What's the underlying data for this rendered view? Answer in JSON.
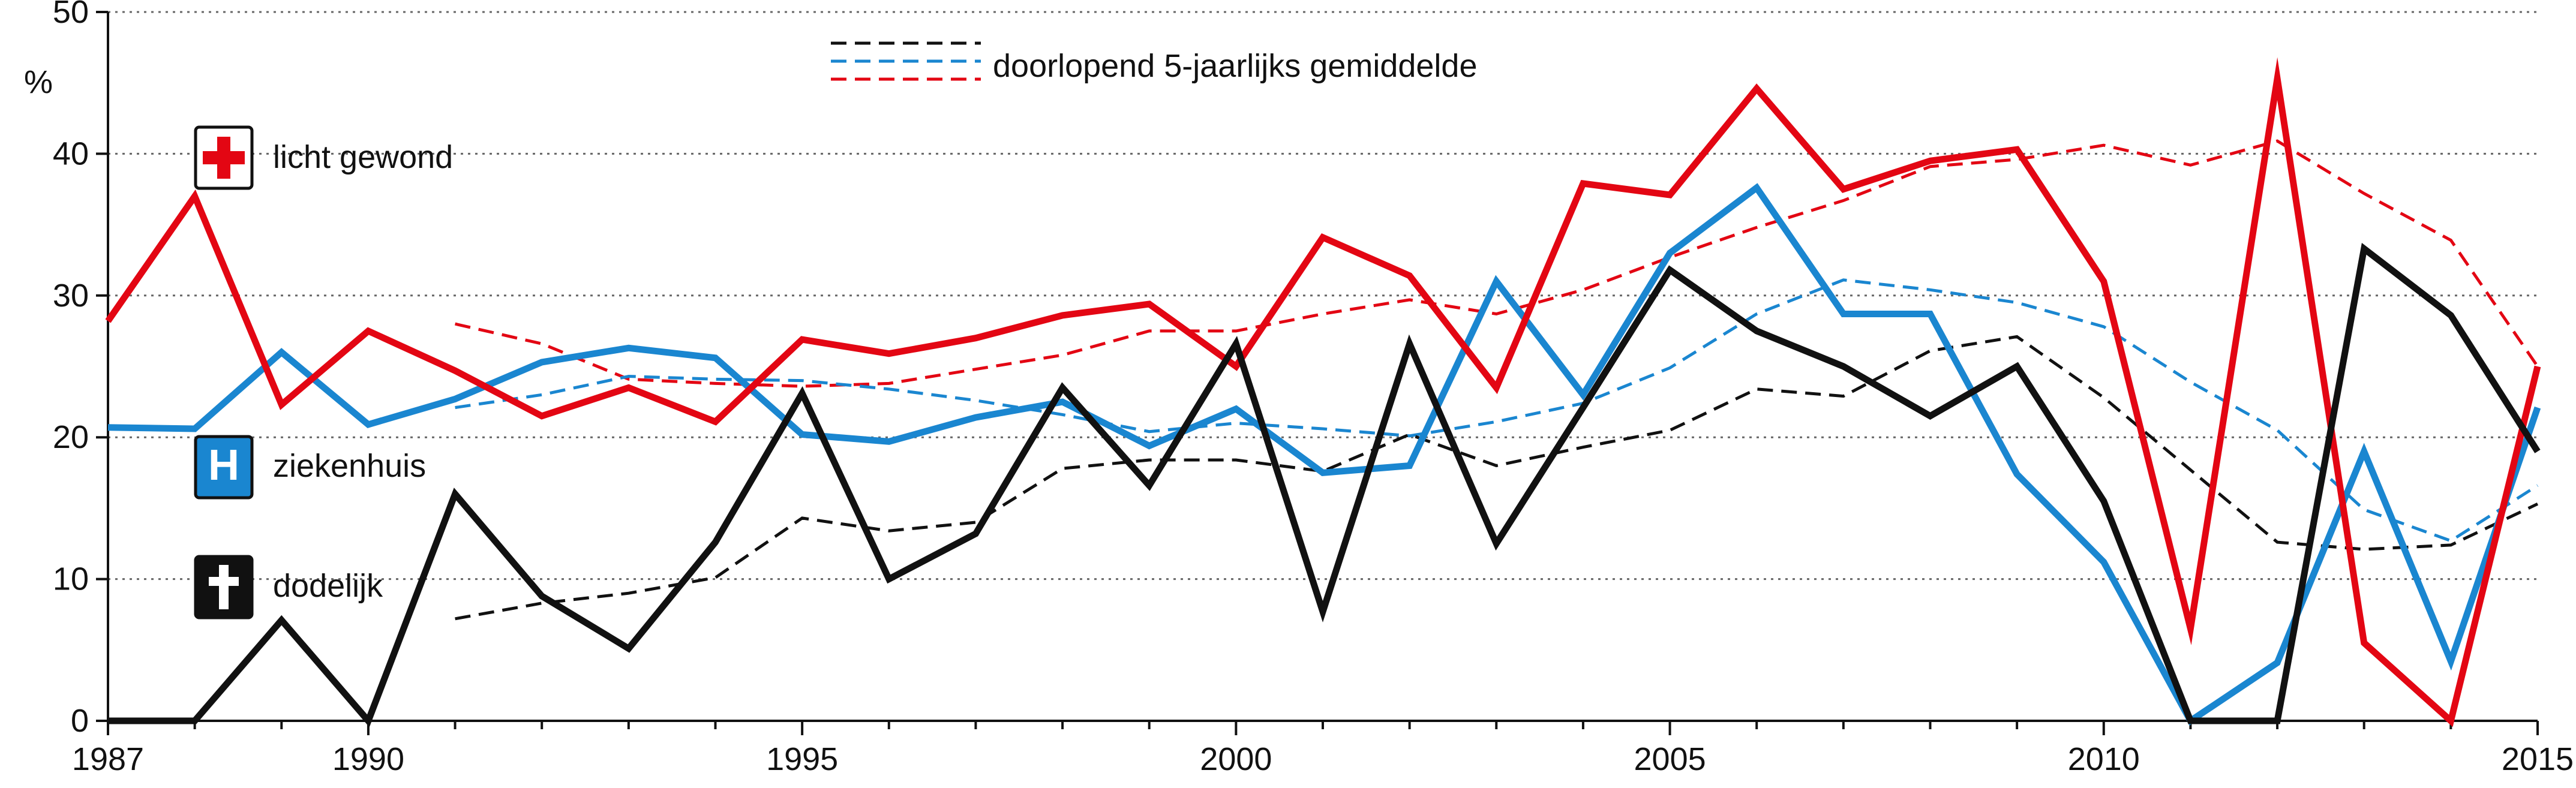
{
  "chart_data": {
    "type": "line",
    "title": "",
    "xlabel": "",
    "ylabel": "%",
    "xlim": [
      1987,
      2015
    ],
    "ylim": [
      0,
      50
    ],
    "y_ticks": [
      0,
      10,
      20,
      30,
      40,
      50
    ],
    "x_ticks": [
      1987,
      1990,
      1995,
      2000,
      2005,
      2010,
      2015
    ],
    "gridlines": "dotted horizontal",
    "legend": {
      "moving_average_label": "doorlopend 5-jaarlijks gemiddelde",
      "position": "top-center"
    },
    "series": [
      {
        "name": "licht gewond",
        "icon": "red-cross-icon",
        "color": "#e30613",
        "x": [
          1987,
          1988,
          1989,
          1990,
          1991,
          1992,
          1993,
          1994,
          1995,
          1996,
          1997,
          1998,
          1999,
          2000,
          2001,
          2002,
          2003,
          2004,
          2005,
          2006,
          2007,
          2008,
          2009,
          2010,
          2011,
          2012,
          2013,
          2014,
          2015
        ],
        "values": [
          28.2,
          37.0,
          22.3,
          27.5,
          24.7,
          21.5,
          23.5,
          21.1,
          26.9,
          25.9,
          27.0,
          28.6,
          29.4,
          25.0,
          34.1,
          31.4,
          23.5,
          37.9,
          37.1,
          44.6,
          37.5,
          39.5,
          40.3,
          31.0,
          6.5,
          45.3,
          5.5,
          0.0,
          25.0
        ],
        "moving_average": {
          "x": [
            1991,
            1992,
            1993,
            1994,
            1995,
            1996,
            1997,
            1998,
            1999,
            2000,
            2001,
            2002,
            2003,
            2004,
            2005,
            2006,
            2007,
            2008,
            2009,
            2010,
            2011,
            2012,
            2013,
            2014,
            2015
          ],
          "values": [
            28.0,
            26.6,
            24.1,
            23.8,
            23.6,
            23.8,
            24.8,
            25.8,
            27.5,
            27.5,
            28.7,
            29.7,
            28.7,
            30.4,
            32.7,
            34.8,
            36.7,
            39.1,
            39.6,
            40.6,
            39.2,
            40.9,
            37.2,
            33.9,
            25.0
          ]
        }
      },
      {
        "name": "ziekenhuis",
        "icon": "hospital-h-icon",
        "color": "#1a86d0",
        "x": [
          1987,
          1988,
          1989,
          1990,
          1991,
          1992,
          1993,
          1994,
          1995,
          1996,
          1997,
          1998,
          1999,
          2000,
          2001,
          2002,
          2003,
          2004,
          2005,
          2006,
          2007,
          2008,
          2009,
          2010,
          2011,
          2012,
          2013,
          2014,
          2015
        ],
        "values": [
          20.7,
          20.6,
          26.0,
          20.9,
          22.7,
          25.3,
          26.3,
          25.6,
          20.2,
          19.7,
          21.4,
          22.5,
          19.4,
          22.0,
          17.5,
          18.0,
          31.0,
          23.0,
          33.0,
          37.6,
          28.7,
          28.7,
          17.4,
          11.2,
          0.0,
          4.1,
          19.0,
          4.2,
          22.1
        ],
        "moving_average": {
          "x": [
            1991,
            1992,
            1993,
            1994,
            1995,
            1996,
            1997,
            1998,
            1999,
            2000,
            2001,
            2002,
            2003,
            2004,
            2005,
            2006,
            2007,
            2008,
            2009,
            2010,
            2011,
            2012,
            2013,
            2014,
            2015
          ],
          "values": [
            22.1,
            23.0,
            24.3,
            24.1,
            24.0,
            23.4,
            22.6,
            21.6,
            20.4,
            21.0,
            20.6,
            20.1,
            21.1,
            22.4,
            24.9,
            28.7,
            31.1,
            30.4,
            29.5,
            27.8,
            23.9,
            20.5,
            14.9,
            12.7,
            16.6
          ]
        }
      },
      {
        "name": "dodelijk",
        "icon": "black-cross-icon",
        "color": "#111111",
        "x": [
          1987,
          1988,
          1989,
          1990,
          1991,
          1992,
          1993,
          1994,
          1995,
          1996,
          1997,
          1998,
          1999,
          2000,
          2001,
          2002,
          2003,
          2004,
          2005,
          2006,
          2007,
          2008,
          2009,
          2010,
          2011,
          2012,
          2013,
          2014,
          2015
        ],
        "values": [
          0.0,
          0.0,
          7.1,
          0.0,
          16.0,
          8.8,
          5.1,
          12.6,
          23.1,
          10.0,
          13.2,
          23.5,
          16.6,
          26.6,
          7.7,
          26.6,
          12.5,
          22.1,
          31.8,
          27.5,
          25.0,
          21.5,
          25.0,
          15.5,
          0.0,
          0.0,
          33.3,
          28.6,
          19.0
        ],
        "moving_average": {
          "x": [
            1991,
            1992,
            1993,
            1994,
            1995,
            1996,
            1997,
            1998,
            1999,
            2000,
            2001,
            2002,
            2003,
            2004,
            2005,
            2006,
            2007,
            2008,
            2009,
            2010,
            2011,
            2012,
            2013,
            2014,
            2015
          ],
          "values": [
            7.2,
            8.3,
            9.0,
            10.1,
            14.3,
            13.4,
            14.0,
            17.8,
            18.4,
            18.4,
            17.6,
            20.2,
            18.0,
            19.3,
            20.5,
            23.4,
            22.9,
            26.1,
            27.1,
            22.8,
            17.7,
            12.6,
            12.1,
            12.4,
            15.3
          ]
        }
      }
    ]
  }
}
